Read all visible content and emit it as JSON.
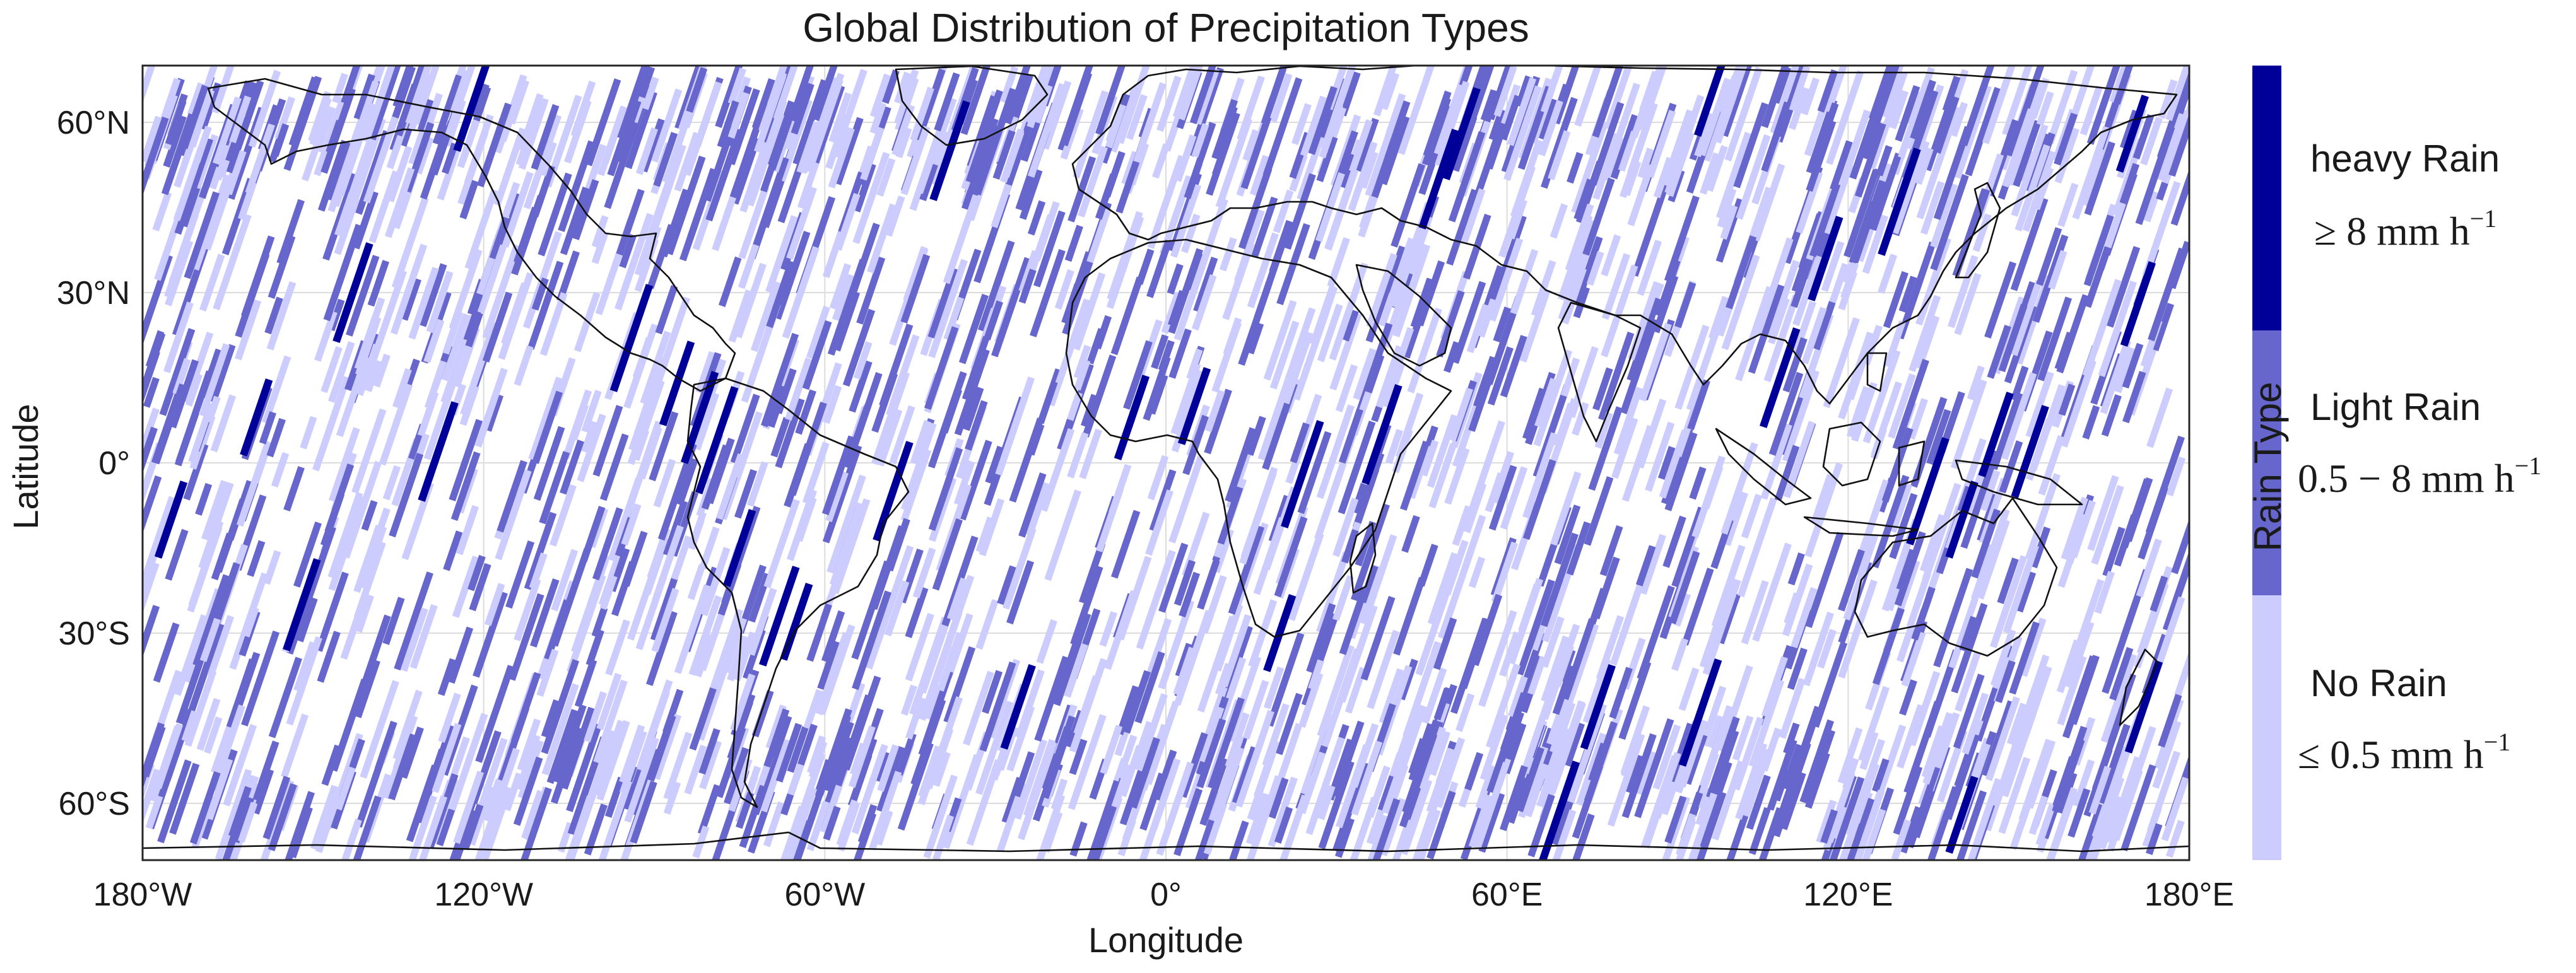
{
  "title": "Global Distribution of Precipitation Types",
  "xlabel": "Longitude",
  "ylabel": "Latitude",
  "x_ticks": [
    {
      "value": -180,
      "label": "180°W"
    },
    {
      "value": -120,
      "label": "120°W"
    },
    {
      "value": -60,
      "label": "60°W"
    },
    {
      "value": 0,
      "label": "0°"
    },
    {
      "value": 60,
      "label": "60°E"
    },
    {
      "value": 120,
      "label": "120°E"
    },
    {
      "value": 180,
      "label": "180°E"
    }
  ],
  "y_ticks": [
    {
      "value": 60,
      "label": "60°N"
    },
    {
      "value": 30,
      "label": "30°N"
    },
    {
      "value": 0,
      "label": "0°"
    },
    {
      "value": -30,
      "label": "30°S"
    },
    {
      "value": -60,
      "label": "60°S"
    }
  ],
  "colorbar": {
    "title": "Rain Type",
    "classes": [
      {
        "name": "heavy Rain",
        "threshold": "≥ 8 mm h",
        "exponent": "−1",
        "color": "#000099"
      },
      {
        "name": "Light Rain",
        "threshold": "0.5 − 8 mm h",
        "exponent": "−1",
        "color": "#6666cc"
      },
      {
        "name": "No Rain",
        "threshold": "≤ 0.5 mm h",
        "exponent": "−1",
        "color": "#ccccff"
      }
    ]
  },
  "chart_data": {
    "type": "scatter",
    "title": "Global Distribution of Precipitation Types",
    "xlabel": "Longitude",
    "ylabel": "Latitude",
    "xlim": [
      -180,
      180
    ],
    "ylim": [
      -70,
      70
    ],
    "grid": true,
    "legend": "colorbar-right",
    "series": [
      {
        "name": "heavy Rain",
        "color": "#000099"
      },
      {
        "name": "Light Rain",
        "color": "#6666cc"
      },
      {
        "name": "No Rain",
        "color": "#ccccff"
      }
    ],
    "tracks": [
      {
        "lon": -143,
        "lat": 30,
        "class": 0
      },
      {
        "lon": -160,
        "lat": 8,
        "class": 0
      },
      {
        "lon": -175,
        "lat": -10,
        "class": 0
      },
      {
        "lon": -152,
        "lat": -25,
        "class": 0
      },
      {
        "lon": -128,
        "lat": 2,
        "class": 0
      },
      {
        "lon": -94,
        "lat": 22,
        "class": 0
      },
      {
        "lon": -86,
        "lat": 14,
        "class": 0
      },
      {
        "lon": -82,
        "lat": 8,
        "class": 0
      },
      {
        "lon": -79,
        "lat": 4,
        "class": 0
      },
      {
        "lon": -75,
        "lat": -15,
        "class": 0
      },
      {
        "lon": -68,
        "lat": -27,
        "class": 0
      },
      {
        "lon": -65,
        "lat": -28,
        "class": 0
      },
      {
        "lon": -48,
        "lat": -5,
        "class": 0
      },
      {
        "lon": -38,
        "lat": 55,
        "class": 0
      },
      {
        "lon": -26,
        "lat": -43,
        "class": 0
      },
      {
        "lon": -6,
        "lat": 8,
        "class": 0
      },
      {
        "lon": 5,
        "lat": 10,
        "class": 0
      },
      {
        "lon": 24,
        "lat": -2,
        "class": 0
      },
      {
        "lon": 20,
        "lat": -30,
        "class": 0
      },
      {
        "lon": 38,
        "lat": 5,
        "class": 0
      },
      {
        "lon": 48,
        "lat": 50,
        "class": 0
      },
      {
        "lon": 52,
        "lat": 58,
        "class": 0
      },
      {
        "lon": 76,
        "lat": -43,
        "class": 0
      },
      {
        "lon": 94,
        "lat": -44,
        "class": 0
      },
      {
        "lon": 108,
        "lat": 15,
        "class": 0
      },
      {
        "lon": 116,
        "lat": 36,
        "class": 0
      },
      {
        "lon": 129,
        "lat": 46,
        "class": 0
      },
      {
        "lon": 134,
        "lat": -5,
        "class": 0
      },
      {
        "lon": 140,
        "lat": -10,
        "class": 0
      },
      {
        "lon": 146,
        "lat": 5,
        "class": 0
      },
      {
        "lon": 152,
        "lat": 2,
        "class": 0
      },
      {
        "lon": 170,
        "lat": 58,
        "class": 0
      },
      {
        "lon": 171,
        "lat": 28,
        "class": 0
      },
      {
        "lon": 172,
        "lat": -43,
        "class": 0
      },
      {
        "lon": 140,
        "lat": -62,
        "class": 0
      },
      {
        "lon": 96,
        "lat": 65,
        "class": 0
      },
      {
        "lon": -122,
        "lat": 63,
        "class": 0
      },
      {
        "lon": 69,
        "lat": -62,
        "class": 0
      }
    ]
  }
}
